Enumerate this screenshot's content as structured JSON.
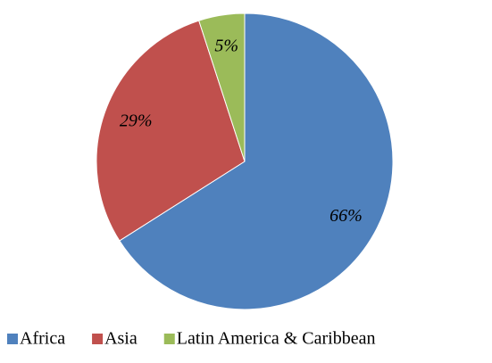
{
  "chart_data": {
    "type": "pie",
    "categories": [
      "Africa",
      "Asia",
      "Latin America & Caribbean"
    ],
    "values": [
      66,
      29,
      5
    ],
    "value_labels": [
      "66%",
      "29%",
      "5%"
    ],
    "colors": [
      "#4f81bd",
      "#c0504d",
      "#9bbb59"
    ],
    "legend": "bottom"
  }
}
